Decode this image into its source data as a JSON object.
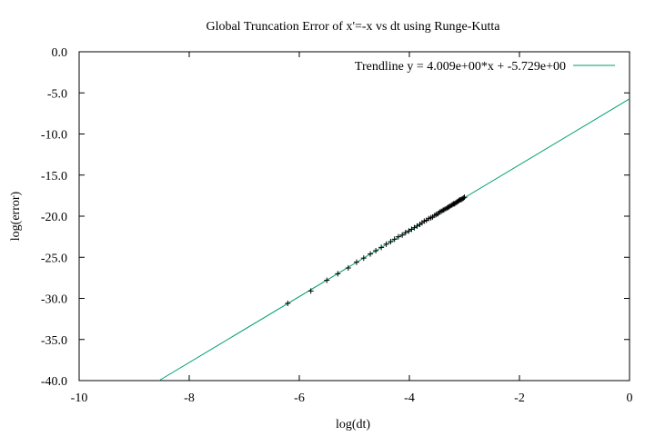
{
  "chart_data": {
    "type": "scatter",
    "title": "Global Truncation Error of x'=-x vs dt using Runge-Kutta",
    "xlabel": "log(dt)",
    "ylabel": "log(error)",
    "xlim": [
      -10,
      0
    ],
    "ylim": [
      -40,
      0
    ],
    "x_ticks": [
      -10,
      -8,
      -6,
      -4,
      -2,
      0
    ],
    "x_tick_labels": [
      "-10",
      "-8",
      "-6",
      "-4",
      "-2",
      "0"
    ],
    "y_ticks": [
      0,
      -5,
      -10,
      -15,
      -20,
      -25,
      -30,
      -35,
      -40
    ],
    "y_tick_labels": [
      "0.0",
      "-5.0",
      "-10.0",
      "-15.0",
      "-20.0",
      "-25.0",
      "-30.0",
      "-35.0",
      "-40.0"
    ],
    "grid": false,
    "legend_position": "top-right",
    "trendline": {
      "label": "Trendline y = 4.009e+00*x + -5.729e+00",
      "slope": 4.009,
      "intercept": -5.729,
      "color": "#009e73"
    },
    "series": [
      {
        "marker": "plus",
        "color": "#000000",
        "points": [
          [
            -6.21,
            -30.6
          ],
          [
            -5.79,
            -29.1
          ],
          [
            -5.5,
            -27.8
          ],
          [
            -5.3,
            -27.0
          ],
          [
            -5.11,
            -26.3
          ],
          [
            -4.96,
            -25.6
          ],
          [
            -4.83,
            -25.1
          ],
          [
            -4.71,
            -24.6
          ],
          [
            -4.61,
            -24.2
          ],
          [
            -4.51,
            -23.8
          ],
          [
            -4.42,
            -23.4
          ],
          [
            -4.34,
            -23.1
          ],
          [
            -4.27,
            -22.8
          ],
          [
            -4.2,
            -22.5
          ],
          [
            -4.13,
            -22.3
          ],
          [
            -4.07,
            -22.0
          ],
          [
            -4.01,
            -21.8
          ],
          [
            -3.96,
            -21.6
          ],
          [
            -3.91,
            -21.4
          ],
          [
            -3.86,
            -21.2
          ],
          [
            -3.81,
            -21.0
          ],
          [
            -3.77,
            -20.8
          ],
          [
            -3.73,
            -20.6
          ],
          [
            -3.69,
            -20.5
          ],
          [
            -3.65,
            -20.3
          ],
          [
            -3.61,
            -20.2
          ],
          [
            -3.58,
            -20.1
          ],
          [
            -3.54,
            -19.9
          ],
          [
            -3.51,
            -19.8
          ],
          [
            -3.48,
            -19.7
          ],
          [
            -3.45,
            -19.5
          ],
          [
            -3.42,
            -19.4
          ],
          [
            -3.39,
            -19.3
          ],
          [
            -3.37,
            -19.2
          ],
          [
            -3.34,
            -19.1
          ],
          [
            -3.31,
            -19.0
          ],
          [
            -3.29,
            -18.9
          ],
          [
            -3.27,
            -18.8
          ],
          [
            -3.24,
            -18.7
          ],
          [
            -3.22,
            -18.6
          ],
          [
            -3.2,
            -18.5
          ],
          [
            -3.18,
            -18.5
          ],
          [
            -3.16,
            -18.4
          ],
          [
            -3.14,
            -18.3
          ],
          [
            -3.12,
            -18.2
          ],
          [
            -3.1,
            -18.1
          ],
          [
            -3.08,
            -18.0
          ],
          [
            -3.06,
            -18.0
          ],
          [
            -3.04,
            -17.9
          ],
          [
            -3.02,
            -17.8
          ],
          [
            -3.0,
            -17.7
          ]
        ]
      }
    ]
  }
}
